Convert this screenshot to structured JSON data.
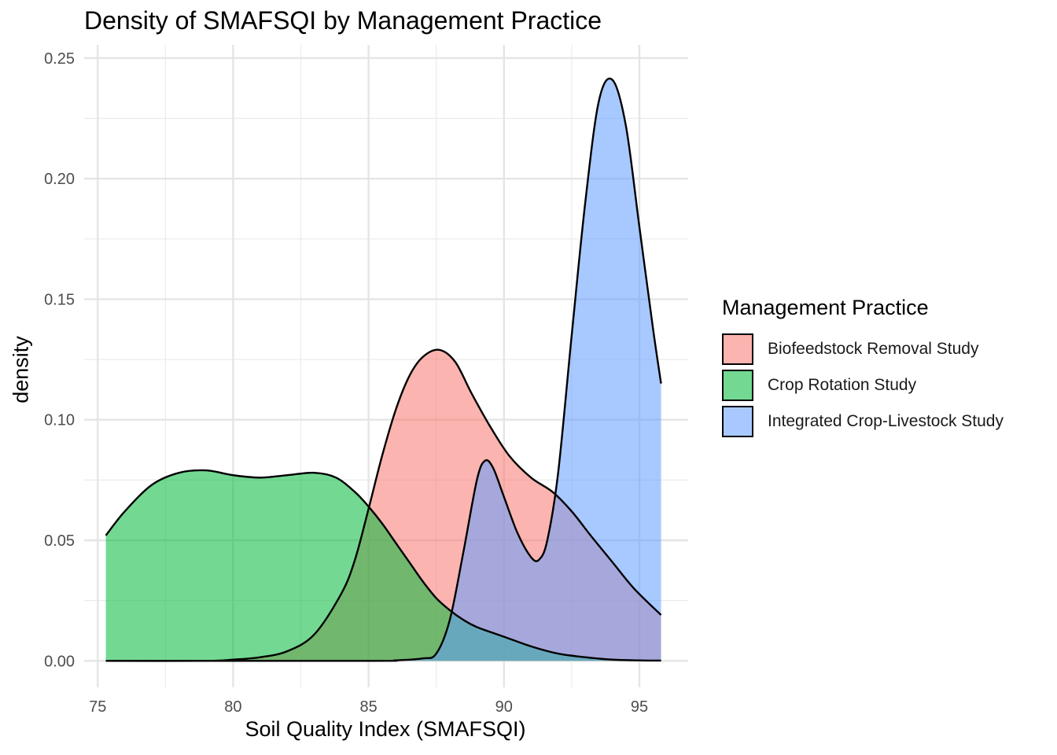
{
  "chart_data": {
    "type": "area",
    "title": "Density of SMAFSQI by Management Practice",
    "xlabel": "Soil Quality Index (SMAFSQI)",
    "ylabel": "density",
    "xlim": [
      74.5,
      96.8
    ],
    "ylim": [
      -0.011,
      0.2555
    ],
    "x_ticks": [
      75,
      80,
      85,
      90,
      95
    ],
    "x_tick_labels": [
      "75",
      "80",
      "85",
      "90",
      "95"
    ],
    "y_ticks": [
      0.0,
      0.05,
      0.1,
      0.15,
      0.2,
      0.25
    ],
    "y_tick_labels": [
      "0.00",
      "0.05",
      "0.10",
      "0.15",
      "0.20",
      "0.25"
    ],
    "grid": true,
    "legend_title": "Management Practice",
    "legend_position": "right",
    "series": [
      {
        "name": "Biofeedstock Removal Study",
        "color": "#F8766D",
        "x": [
          75.3,
          79,
          80,
          81,
          82,
          83,
          84,
          84.5,
          85,
          85.5,
          86,
          86.5,
          87,
          87.6,
          88.2,
          88.8,
          89.5,
          90.2,
          91,
          91.8,
          92.5,
          93.2,
          94,
          94.8,
          95.8
        ],
        "y": [
          0,
          0,
          0.0005,
          0.0015,
          0.004,
          0.011,
          0.028,
          0.042,
          0.063,
          0.085,
          0.104,
          0.118,
          0.126,
          0.129,
          0.124,
          0.111,
          0.097,
          0.085,
          0.076,
          0.07,
          0.062,
          0.052,
          0.041,
          0.03,
          0.019
        ]
      },
      {
        "name": "Crop Rotation Study",
        "color": "#00BA38",
        "x": [
          75.3,
          76,
          77,
          78,
          79,
          80,
          81,
          82,
          83,
          83.8,
          84.5,
          85,
          85.5,
          86,
          86.5,
          87,
          87.5,
          88,
          88.5,
          89,
          90,
          91,
          92,
          93,
          94,
          95,
          95.8
        ],
        "y": [
          0.052,
          0.062,
          0.073,
          0.078,
          0.079,
          0.077,
          0.076,
          0.077,
          0.078,
          0.076,
          0.07,
          0.064,
          0.057,
          0.049,
          0.041,
          0.033,
          0.026,
          0.021,
          0.017,
          0.014,
          0.01,
          0.006,
          0.003,
          0.0015,
          0.0005,
          0.0002,
          0.0001
        ]
      },
      {
        "name": "Integrated Crop-Livestock Study",
        "color": "#619CFF",
        "x": [
          75.3,
          85,
          86,
          87,
          87.5,
          88,
          88.5,
          89,
          89.3,
          89.6,
          90,
          90.5,
          91,
          91.3,
          91.6,
          92,
          92.5,
          93,
          93.5,
          94,
          94.5,
          95,
          95.5,
          95.8
        ],
        "y": [
          0,
          0,
          0.0002,
          0.001,
          0.003,
          0.017,
          0.045,
          0.075,
          0.083,
          0.08,
          0.068,
          0.053,
          0.043,
          0.042,
          0.05,
          0.078,
          0.135,
          0.19,
          0.232,
          0.241,
          0.222,
          0.18,
          0.138,
          0.115
        ]
      }
    ]
  }
}
